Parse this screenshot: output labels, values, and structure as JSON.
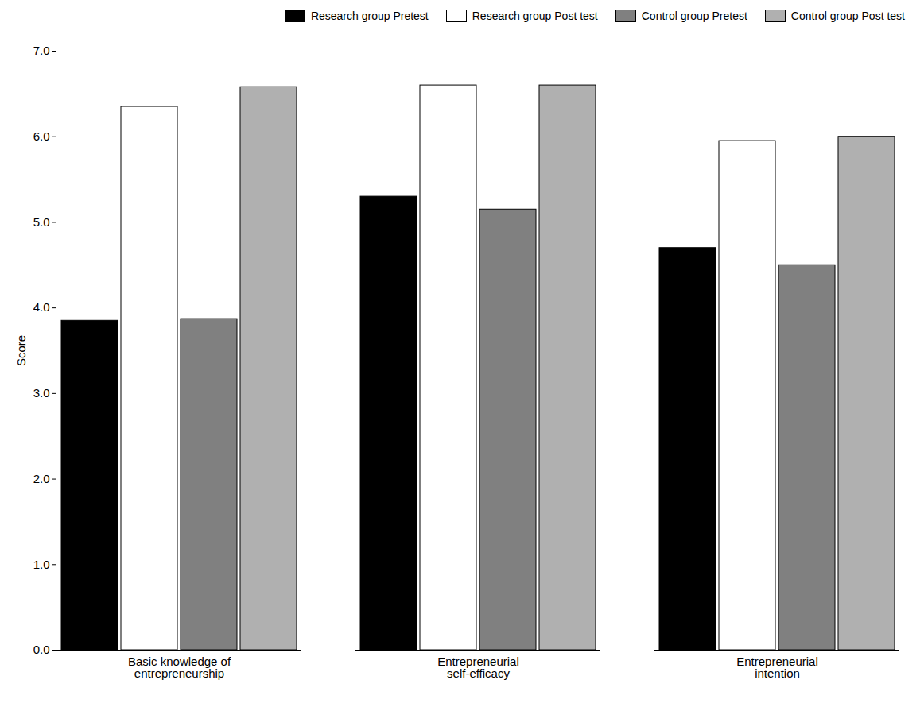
{
  "chart_data": {
    "type": "bar",
    "categories": [
      "Basic knowledge of\nentrepreneurship",
      "Entrepreneurial\nself-efficacy",
      "Entrepreneurial\nintention"
    ],
    "series": [
      {
        "name": "Research group Pretest",
        "color": "#000000",
        "values": [
          3.85,
          5.3,
          4.7
        ]
      },
      {
        "name": "Research group Post test",
        "color": "#ffffff",
        "values": [
          6.35,
          6.6,
          5.95
        ]
      },
      {
        "name": "Control group Pretest",
        "color": "#808080",
        "values": [
          3.87,
          5.15,
          4.5
        ]
      },
      {
        "name": "Control group Post test",
        "color": "#b0b0b0",
        "values": [
          6.58,
          6.6,
          6.0
        ]
      }
    ],
    "ylabel": "Score",
    "ylim": [
      0,
      7
    ],
    "yticks": [
      0,
      1,
      2,
      3,
      4,
      5,
      6,
      7
    ],
    "legend": "upper right",
    "grid": false
  }
}
